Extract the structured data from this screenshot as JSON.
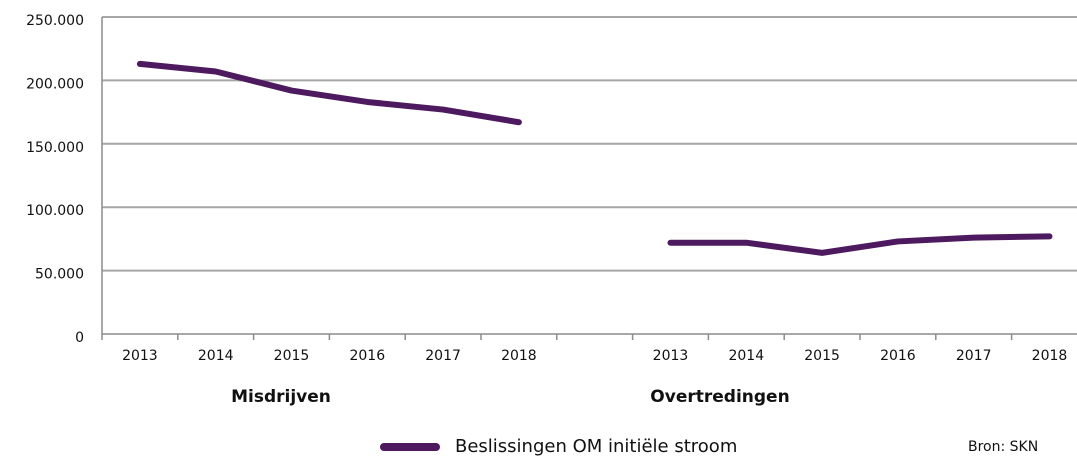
{
  "chart_data": {
    "type": "line",
    "categories": [
      "2013",
      "2014",
      "2015",
      "2016",
      "2017",
      "2018",
      null,
      "2013",
      "2014",
      "2015",
      "2016",
      "2017",
      "2018"
    ],
    "series": [
      {
        "name": "Beslissingen OM initiële stroom",
        "color": "#4e1a5f",
        "values": [
          213000,
          207000,
          192000,
          183000,
          177000,
          167000,
          null,
          72000,
          72000,
          64000,
          73000,
          76000,
          77000
        ]
      }
    ],
    "ylim": [
      0,
      250000
    ],
    "yticks": [
      0,
      {
        "value": 50000,
        "label": "50.000"
      },
      {
        "value": 100000,
        "label": "100.000"
      },
      {
        "value": 150000,
        "label": "150.000"
      },
      {
        "value": 200000,
        "label": "200.000"
      },
      {
        "value": 250000,
        "label": "250.000"
      }
    ],
    "grid": true,
    "annotations": [
      "Misdrijven",
      "Overtredingen"
    ],
    "source": "Bron: SKN"
  }
}
